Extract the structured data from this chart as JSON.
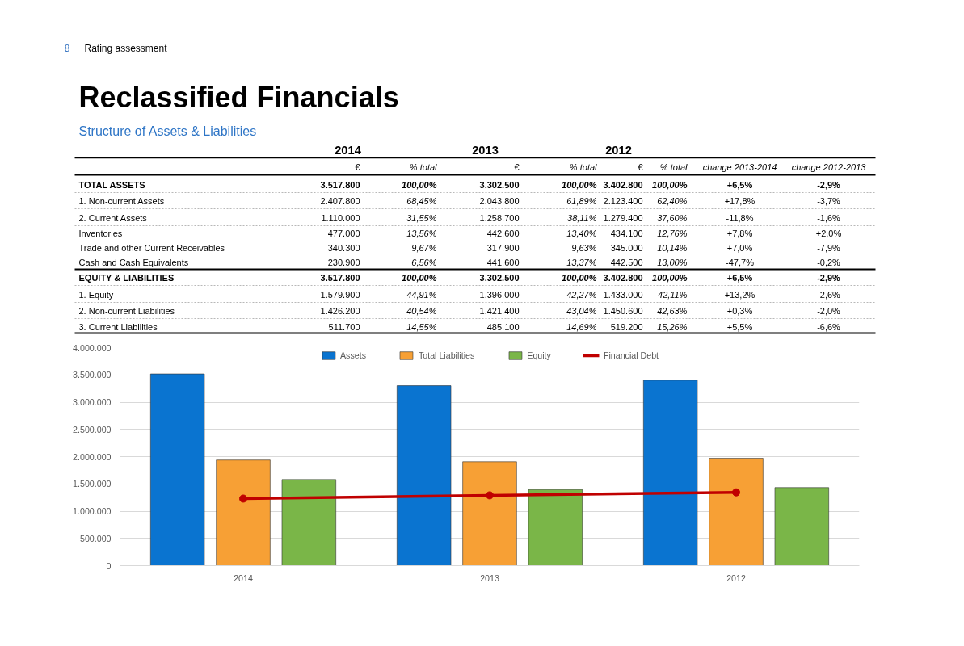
{
  "chart_data": [
    {
      "type": "other",
      "title": "Reclassified Financials",
      "subtitle": "Structure of Assets & Liabilities",
      "annotations": [
        "8",
        "Rating assessment",
        "2014",
        "2013",
        "2012"
      ],
      "categories": [
        "€",
        "% total",
        "€",
        "% total",
        "€",
        "% total",
        "change 2013-2014",
        "change 2012-2013"
      ],
      "y_categories": [
        "TOTAL ASSETS",
        "1. Non-current Assets",
        "2. Current Assets",
        "Inventories",
        "Trade and other Current Receivables",
        "Cash and Cash Equivalents",
        "EQUITY & LIABILITIES",
        "1. Equity",
        "2. Non-current Liabilities",
        "3. Current Liabilities"
      ],
      "cell_labels": [
        [
          "3.517.800",
          "100,00%",
          "3.302.500",
          "100,00%",
          "3.402.800",
          "100,00%",
          "+6,5%",
          "-2,9%"
        ],
        [
          "2.407.800",
          "68,45%",
          "2.043.800",
          "61,89%",
          "2.123.400",
          "62,40%",
          "+17,8%",
          "-3,7%"
        ],
        [
          "1.110.000",
          "31,55%",
          "1.258.700",
          "38,11%",
          "1.279.400",
          "37,60%",
          "-11,8%",
          "-1,6%"
        ],
        [
          "477.000",
          "13,56%",
          "442.600",
          "13,40%",
          "434.100",
          "12,76%",
          "+7,8%",
          "+2,0%"
        ],
        [
          "340.300",
          "9,67%",
          "317.900",
          "9,63%",
          "345.000",
          "10,14%",
          "+7,0%",
          "-7,9%"
        ],
        [
          "230.900",
          "6,56%",
          "441.600",
          "13,37%",
          "442.500",
          "13,00%",
          "-47,7%",
          "-0,2%"
        ],
        [
          "3.517.800",
          "100,00%",
          "3.302.500",
          "100,00%",
          "3.402.800",
          "100,00%",
          "+6,5%",
          "-2,9%"
        ],
        [
          "1.579.900",
          "44,91%",
          "1.396.000",
          "42,27%",
          "1.433.000",
          "42,11%",
          "+13,2%",
          "-2,6%"
        ],
        [
          "1.426.200",
          "40,54%",
          "1.421.400",
          "43,04%",
          "1.450.600",
          "42,63%",
          "+0,3%",
          "-2,0%"
        ],
        [
          "511.700",
          "14,55%",
          "485.100",
          "14,69%",
          "519.200",
          "15,26%",
          "+5,5%",
          "-6,6%"
        ]
      ]
    },
    {
      "type": "bar",
      "categories": [
        "2014",
        "2013",
        "2012"
      ],
      "series": [
        {
          "name": "Assets",
          "color": "#0a74d0",
          "values": [
            3517800,
            3302500,
            3402800
          ]
        },
        {
          "name": "Total Liabilities",
          "color": "#f7a035",
          "values": [
            1937900,
            1906500,
            1969800
          ]
        },
        {
          "name": "Equity",
          "color": "#7ab648",
          "values": [
            1579900,
            1396000,
            1433000
          ]
        },
        {
          "name": "Financial Debt",
          "type": "line",
          "color": "#c00000",
          "values": [
            1230000,
            1290000,
            1345000
          ]
        }
      ],
      "ylim": [
        0,
        4000000
      ],
      "yticks": [
        {
          "value": 0,
          "label": "0"
        },
        {
          "value": 500000,
          "label": "500.000"
        },
        {
          "value": 1000000,
          "label": "1.000.000"
        },
        {
          "value": 1500000,
          "label": "1.500.000"
        },
        {
          "value": 2000000,
          "label": "2.000.000"
        },
        {
          "value": 2500000,
          "label": "2.500.000"
        },
        {
          "value": 3000000,
          "label": "3.000.000"
        },
        {
          "value": 3500000,
          "label": "3.500.000"
        },
        {
          "value": 4000000,
          "label": "4.000.000"
        }
      ],
      "grid": "y",
      "legend": "top",
      "marker": "circle"
    }
  ]
}
